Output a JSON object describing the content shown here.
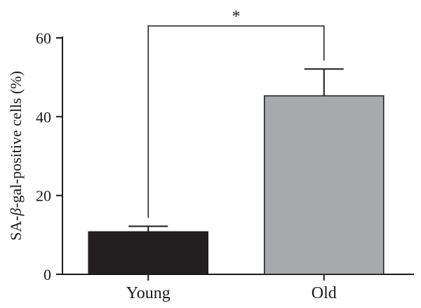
{
  "chart_data": {
    "type": "bar",
    "categories": [
      "Young",
      "Old"
    ],
    "values": [
      10.8,
      45.3
    ],
    "errors": [
      1.4,
      6.8
    ],
    "colors": [
      "#231f20",
      "#a7a9ac"
    ],
    "ylabel_prefix": "SA-",
    "ylabel_symbol": "β",
    "ylabel_suffix": "-gal-positive cells (%)",
    "ylim": [
      0,
      60
    ],
    "yticks": [
      0,
      20,
      40,
      60
    ],
    "significance": {
      "between": [
        "Young",
        "Old"
      ],
      "label": "*"
    },
    "grid": false
  }
}
